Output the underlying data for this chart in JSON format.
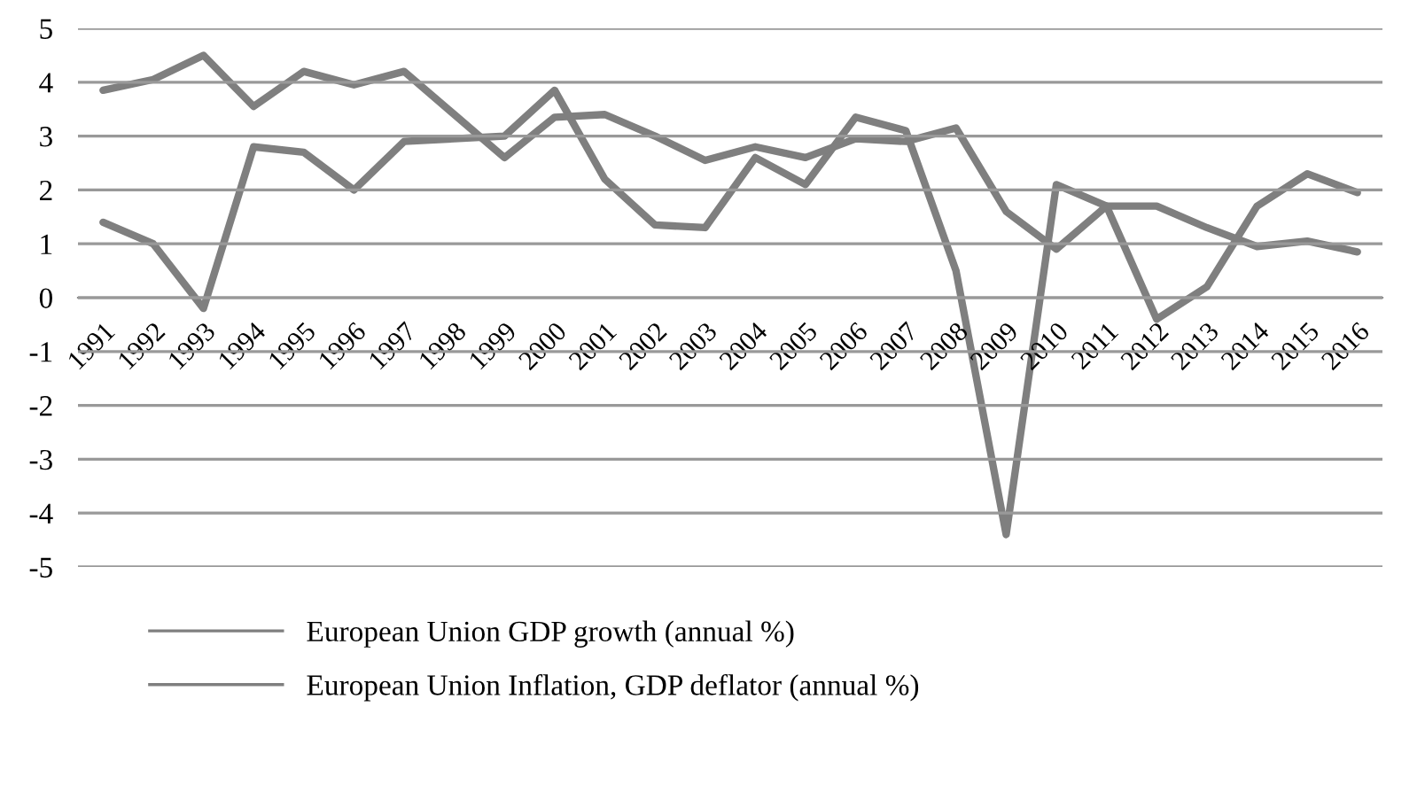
{
  "chart_data": {
    "type": "line",
    "categories": [
      "1991",
      "1992",
      "1993",
      "1994",
      "1995",
      "1996",
      "1997",
      "1998",
      "1999",
      "2000",
      "2001",
      "2002",
      "2003",
      "2004",
      "2005",
      "2006",
      "2007",
      "2008",
      "2009",
      "2010",
      "2011",
      "2012",
      "2013",
      "2014",
      "2015",
      "2016"
    ],
    "series": [
      {
        "name": "European Union GDP growth (annual %)",
        "color": "#7f7f7f",
        "values": [
          1.4,
          1.0,
          -0.2,
          2.8,
          2.7,
          2.0,
          2.9,
          2.95,
          3.0,
          3.85,
          2.2,
          1.35,
          1.3,
          2.6,
          2.1,
          3.35,
          3.1,
          0.5,
          -4.4,
          2.1,
          1.7,
          -0.4,
          0.2,
          1.7,
          2.3,
          1.95
        ]
      },
      {
        "name": "European Union Inflation, GDP deflator (annual %)",
        "color": "#7f7f7f",
        "values": [
          3.85,
          4.05,
          4.5,
          3.55,
          4.2,
          3.95,
          4.2,
          3.4,
          2.6,
          3.35,
          3.4,
          3.0,
          2.55,
          2.8,
          2.6,
          2.95,
          2.9,
          3.15,
          1.6,
          0.9,
          1.7,
          1.7,
          1.3,
          0.95,
          1.05,
          0.85
        ]
      }
    ],
    "ylim": [
      -5,
      5
    ],
    "yticks": [
      -5,
      -4,
      -3,
      -2,
      -1,
      0,
      1,
      2,
      3,
      4,
      5
    ],
    "grid": "y",
    "legend": "bottom",
    "marker": "none",
    "line_style": "solid"
  }
}
